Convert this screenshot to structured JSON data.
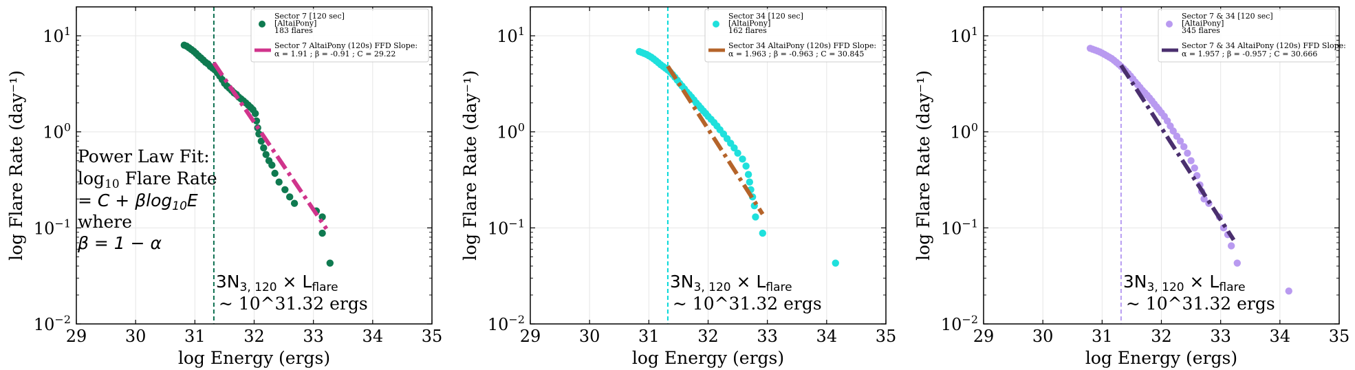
{
  "figure": {
    "shared": {
      "xlabel": "log Energy (ergs)",
      "ylabel": "log Flare Rate (day⁻¹)",
      "x_ticks": [
        "29",
        "30",
        "31",
        "32",
        "33",
        "34",
        "35"
      ],
      "y_ticks": [
        {
          "base": "10",
          "exp": "1",
          "value": 10
        },
        {
          "base": "10",
          "exp": "0",
          "value": 1
        },
        {
          "base": "10",
          "exp": "−1",
          "value": 0.1
        },
        {
          "base": "10",
          "exp": "−2",
          "value": 0.01
        }
      ],
      "threshold_label_1": "3N₃,₁₂₀ × L_flare",
      "threshold_label_math": {
        "main": "3N",
        "sub": "3, 120",
        "times": " × L",
        "sub2": "flare"
      },
      "threshold_label_2": "~ 10^31.32 ergs",
      "power_law_text": {
        "line1": "Power Law Fit:",
        "line2_pre": "log",
        "line2_sub": "10",
        "line2_post": " Flare Rate",
        "line3": "= C + βlog₁₀E",
        "line3_parts": {
          "pre": "= C + βlog",
          "sub": "10",
          "post": "E"
        },
        "line4": "where",
        "line5": "β = 1 − α"
      }
    }
  },
  "chart_data": [
    {
      "type": "scatter",
      "title": "",
      "xlabel": "log Energy (ergs)",
      "ylabel": "log Flare Rate (day⁻¹)",
      "xlim": [
        29,
        35
      ],
      "ylim": [
        0.01,
        20
      ],
      "yscale": "log",
      "grid": true,
      "legend_position": "top-right",
      "threshold_x": 31.32,
      "threshold_color": "#0b6e4f",
      "series": [
        {
          "name": "Sector 7 [120 sec]",
          "legend_lines": [
            "Sector 7 [120 sec]",
            "[AltaiPony]",
            " 183 flares"
          ],
          "kind": "points",
          "color": "#0f7a50",
          "points": [
            [
              30.82,
              7.99
            ],
            [
              30.86,
              7.8
            ],
            [
              30.9,
              7.5
            ],
            [
              30.94,
              7.2
            ],
            [
              30.98,
              6.9
            ],
            [
              31.02,
              6.55
            ],
            [
              31.06,
              6.2
            ],
            [
              31.1,
              5.9
            ],
            [
              31.14,
              5.6
            ],
            [
              31.18,
              5.3
            ],
            [
              31.22,
              5.1
            ],
            [
              31.26,
              4.8
            ],
            [
              31.3,
              4.6
            ],
            [
              31.34,
              4.4
            ],
            [
              31.38,
              4.1
            ],
            [
              31.42,
              3.8
            ],
            [
              31.46,
              3.5
            ],
            [
              31.5,
              3.2
            ],
            [
              31.54,
              3.0
            ],
            [
              31.58,
              2.85
            ],
            [
              31.62,
              2.7
            ],
            [
              31.66,
              2.55
            ],
            [
              31.7,
              2.45
            ],
            [
              31.74,
              2.3
            ],
            [
              31.78,
              2.2
            ],
            [
              31.82,
              2.1
            ],
            [
              31.86,
              2.0
            ],
            [
              31.9,
              1.9
            ],
            [
              31.94,
              1.8
            ],
            [
              31.98,
              1.7
            ],
            [
              32.02,
              1.55
            ],
            [
              32.04,
              1.3
            ],
            [
              32.06,
              1.1
            ],
            [
              32.08,
              0.95
            ],
            [
              32.12,
              0.8
            ],
            [
              32.16,
              0.68
            ],
            [
              32.2,
              0.58
            ],
            [
              32.25,
              0.5
            ],
            [
              32.3,
              0.45
            ],
            [
              32.35,
              0.37
            ],
            [
              32.42,
              0.3
            ],
            [
              32.52,
              0.25
            ],
            [
              32.6,
              0.21
            ],
            [
              32.68,
              0.18
            ],
            [
              33.05,
              0.15
            ],
            [
              33.15,
              0.13
            ],
            [
              33.15,
              0.088
            ],
            [
              33.28,
              0.043
            ]
          ]
        },
        {
          "name": "Sector 7 AltaiPony (120s) FFD Slope:",
          "legend_lines": [
            "Sector 7 AltaiPony (120s) FFD Slope:",
            "α = 1.91 ; β = -0.91 ; C = 29.22"
          ],
          "kind": "fit",
          "color": "#d0348c",
          "alpha": 1.91,
          "beta": -0.91,
          "C": 29.22,
          "x_range": [
            31.32,
            33.22
          ]
        }
      ]
    },
    {
      "type": "scatter",
      "title": "",
      "xlabel": "log Energy (ergs)",
      "ylabel": "log Flare Rate (day⁻¹)",
      "xlim": [
        29,
        35
      ],
      "ylim": [
        0.01,
        20
      ],
      "yscale": "log",
      "grid": true,
      "legend_position": "top-right",
      "threshold_x": 31.32,
      "threshold_color": "#00d8d8",
      "series": [
        {
          "name": "Sector 34 [120 sec]",
          "legend_lines": [
            "Sector 34 [120 sec]",
            "[AltaiPony]",
            " 162 flares"
          ],
          "kind": "points",
          "color": "#1fe0dc",
          "points": [
            [
              30.84,
              6.85
            ],
            [
              30.88,
              6.7
            ],
            [
              30.92,
              6.55
            ],
            [
              30.96,
              6.4
            ],
            [
              31.0,
              6.2
            ],
            [
              31.04,
              6.0
            ],
            [
              31.08,
              5.75
            ],
            [
              31.12,
              5.5
            ],
            [
              31.16,
              5.25
            ],
            [
              31.2,
              5.0
            ],
            [
              31.24,
              4.8
            ],
            [
              31.28,
              4.6
            ],
            [
              31.32,
              4.4
            ],
            [
              31.36,
              4.2
            ],
            [
              31.4,
              3.95
            ],
            [
              31.44,
              3.7
            ],
            [
              31.48,
              3.45
            ],
            [
              31.52,
              3.2
            ],
            [
              31.56,
              3.0
            ],
            [
              31.6,
              2.8
            ],
            [
              31.64,
              2.6
            ],
            [
              31.68,
              2.45
            ],
            [
              31.72,
              2.3
            ],
            [
              31.76,
              2.15
            ],
            [
              31.8,
              2.0
            ],
            [
              31.84,
              1.88
            ],
            [
              31.88,
              1.76
            ],
            [
              31.92,
              1.65
            ],
            [
              31.96,
              1.55
            ],
            [
              32.0,
              1.45
            ],
            [
              32.05,
              1.35
            ],
            [
              32.1,
              1.25
            ],
            [
              32.15,
              1.15
            ],
            [
              32.2,
              1.05
            ],
            [
              32.26,
              0.95
            ],
            [
              32.32,
              0.85
            ],
            [
              32.38,
              0.76
            ],
            [
              32.44,
              0.68
            ],
            [
              32.5,
              0.6
            ],
            [
              32.58,
              0.52
            ],
            [
              32.64,
              0.44
            ],
            [
              32.68,
              0.36
            ],
            [
              32.7,
              0.3
            ],
            [
              32.72,
              0.25
            ],
            [
              32.75,
              0.21
            ],
            [
              32.78,
              0.17
            ],
            [
              32.8,
              0.13
            ],
            [
              32.92,
              0.088
            ],
            [
              34.15,
              0.043
            ]
          ]
        },
        {
          "name": "Sector 34 AltaiPony (120s) FFD Slope:",
          "legend_lines": [
            "Sector 34 AltaiPony (120s) FFD Slope:",
            "α = 1.963 ; β = -0.963 ; C = 30.845"
          ],
          "kind": "fit",
          "color": "#b5642a",
          "alpha": 1.963,
          "beta": -0.963,
          "C": 30.845,
          "x_range": [
            31.32,
            32.92
          ]
        }
      ]
    },
    {
      "type": "scatter",
      "title": "",
      "xlabel": "log Energy (ergs)",
      "ylabel": "log Flare Rate (day⁻¹)",
      "xlim": [
        29,
        35
      ],
      "ylim": [
        0.01,
        20
      ],
      "yscale": "log",
      "grid": true,
      "legend_position": "top-right",
      "threshold_x": 31.32,
      "threshold_color": "#b79cf2",
      "series": [
        {
          "name": "Sector 7 & 34 [120 sec]",
          "legend_lines": [
            "Sector 7 & 34 [120 sec]",
            "[AltaiPony]",
            " 345 flares"
          ],
          "kind": "points",
          "color": "#b99af0",
          "points": [
            [
              30.8,
              7.4
            ],
            [
              30.84,
              7.25
            ],
            [
              30.88,
              7.1
            ],
            [
              30.92,
              6.95
            ],
            [
              30.96,
              6.8
            ],
            [
              31.0,
              6.6
            ],
            [
              31.04,
              6.4
            ],
            [
              31.08,
              6.2
            ],
            [
              31.12,
              6.0
            ],
            [
              31.16,
              5.8
            ],
            [
              31.2,
              5.55
            ],
            [
              31.24,
              5.3
            ],
            [
              31.28,
              5.05
            ],
            [
              31.32,
              4.8
            ],
            [
              31.36,
              4.55
            ],
            [
              31.4,
              4.3
            ],
            [
              31.44,
              4.05
            ],
            [
              31.48,
              3.8
            ],
            [
              31.52,
              3.55
            ],
            [
              31.56,
              3.3
            ],
            [
              31.6,
              3.1
            ],
            [
              31.64,
              2.9
            ],
            [
              31.68,
              2.7
            ],
            [
              31.72,
              2.55
            ],
            [
              31.76,
              2.4
            ],
            [
              31.8,
              2.25
            ],
            [
              31.84,
              2.1
            ],
            [
              31.88,
              1.95
            ],
            [
              31.92,
              1.82
            ],
            [
              31.96,
              1.7
            ],
            [
              32.0,
              1.58
            ],
            [
              32.05,
              1.45
            ],
            [
              32.1,
              1.3
            ],
            [
              32.15,
              1.15
            ],
            [
              32.2,
              1.02
            ],
            [
              32.26,
              0.9
            ],
            [
              32.32,
              0.8
            ],
            [
              32.38,
              0.7
            ],
            [
              32.44,
              0.6
            ],
            [
              32.5,
              0.5
            ],
            [
              32.56,
              0.42
            ],
            [
              32.6,
              0.35
            ],
            [
              32.65,
              0.28
            ],
            [
              32.68,
              0.24
            ],
            [
              32.72,
              0.2
            ],
            [
              32.8,
              0.18
            ],
            [
              32.98,
              0.13
            ],
            [
              33.05,
              0.1
            ],
            [
              33.12,
              0.085
            ],
            [
              33.18,
              0.065
            ],
            [
              33.28,
              0.043
            ],
            [
              34.15,
              0.022
            ]
          ]
        },
        {
          "name": "Sector 7 & 34 AltaiPony (120s) FFD Slope:",
          "legend_lines": [
            "Sector 7 & 34 AltaiPony (120s) FFD Slope:",
            "α = 1.957 ; β = -0.957 ; C = 30.666"
          ],
          "kind": "fit",
          "color": "#4a2f6e",
          "alpha": 1.957,
          "beta": -0.957,
          "C": 30.666,
          "x_range": [
            31.32,
            33.22
          ]
        }
      ]
    }
  ]
}
